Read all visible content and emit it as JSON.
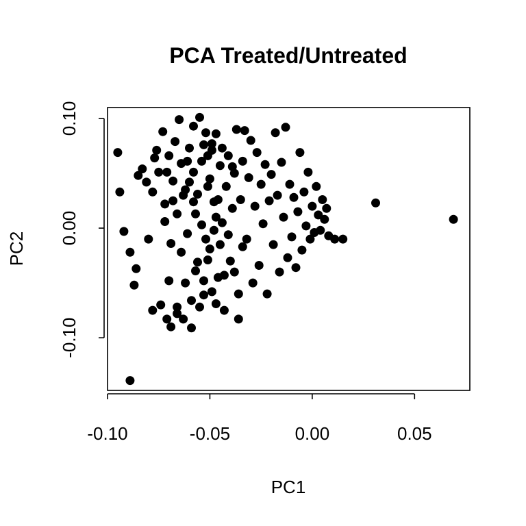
{
  "chart_data": {
    "type": "scatter",
    "title": "PCA Treated/Untreated",
    "xlabel": "PC1",
    "ylabel": "PC2",
    "xlim": [
      -0.1,
      0.077
    ],
    "ylim": [
      -0.148,
      0.11
    ],
    "x_ticks": [
      -0.1,
      -0.05,
      0.0,
      0.05
    ],
    "x_tick_labels": [
      "-0.10",
      "-0.05",
      "0.00",
      "0.05"
    ],
    "y_ticks": [
      -0.1,
      0.0,
      0.1
    ],
    "y_tick_labels": [
      "-0.10",
      "0.00",
      "0.10"
    ],
    "grid": false,
    "legend": "none",
    "point_color": "#000000",
    "points": [
      [
        -0.095,
        0.069
      ],
      [
        -0.094,
        0.033
      ],
      [
        -0.092,
        -0.003
      ],
      [
        -0.089,
        -0.022
      ],
      [
        -0.089,
        -0.139
      ],
      [
        -0.087,
        -0.052
      ],
      [
        -0.086,
        -0.037
      ],
      [
        -0.085,
        0.048
      ],
      [
        -0.083,
        0.054
      ],
      [
        -0.081,
        0.042
      ],
      [
        -0.08,
        -0.01
      ],
      [
        -0.078,
        0.033
      ],
      [
        -0.078,
        -0.075
      ],
      [
        -0.077,
        0.064
      ],
      [
        -0.076,
        0.071
      ],
      [
        -0.074,
        -0.07
      ],
      [
        -0.073,
        0.088
      ],
      [
        -0.072,
        0.022
      ],
      [
        -0.071,
        -0.083
      ],
      [
        -0.07,
        0.066
      ],
      [
        -0.069,
        -0.09
      ],
      [
        -0.068,
        0.043
      ],
      [
        -0.067,
        0.079
      ],
      [
        -0.066,
        -0.072
      ],
      [
        -0.065,
        0.099
      ],
      [
        -0.064,
        0.059
      ],
      [
        -0.063,
        -0.083
      ],
      [
        -0.062,
        0.035
      ],
      [
        -0.061,
        -0.005
      ],
      [
        -0.06,
        0.073
      ],
      [
        -0.059,
        -0.091
      ],
      [
        -0.058,
        0.093
      ],
      [
        -0.057,
        0.013
      ],
      [
        -0.056,
        -0.031
      ],
      [
        -0.055,
        0.101
      ],
      [
        -0.054,
        0.061
      ],
      [
        -0.053,
        -0.061
      ],
      [
        -0.052,
        0.087
      ],
      [
        -0.051,
        0.038
      ],
      [
        -0.05,
        -0.019
      ],
      [
        -0.049,
        0.071
      ],
      [
        -0.048,
        0.024
      ],
      [
        -0.047,
        0.086
      ],
      [
        -0.046,
        -0.045
      ],
      [
        -0.045,
        0.057
      ],
      [
        -0.044,
        0.005
      ],
      [
        -0.043,
        -0.075
      ],
      [
        -0.042,
        0.038
      ],
      [
        -0.041,
        0.066
      ],
      [
        -0.04,
        -0.03
      ],
      [
        -0.039,
        0.018
      ],
      [
        -0.038,
        0.05
      ],
      [
        -0.037,
        0.09
      ],
      [
        -0.036,
        -0.083
      ],
      [
        -0.035,
        0.026
      ],
      [
        -0.034,
        0.061
      ],
      [
        -0.033,
        0.089
      ],
      [
        -0.032,
        -0.01
      ],
      [
        -0.031,
        0.046
      ],
      [
        -0.03,
        0.08
      ],
      [
        -0.029,
        -0.05
      ],
      [
        -0.028,
        0.02
      ],
      [
        -0.027,
        0.069
      ],
      [
        -0.026,
        -0.034
      ],
      [
        -0.025,
        0.04
      ],
      [
        -0.024,
        0.004
      ],
      [
        -0.023,
        0.058
      ],
      [
        -0.022,
        -0.06
      ],
      [
        -0.021,
        0.025
      ],
      [
        -0.02,
        0.049
      ],
      [
        -0.019,
        -0.015
      ],
      [
        -0.018,
        0.087
      ],
      [
        -0.017,
        0.03
      ],
      [
        -0.016,
        -0.04
      ],
      [
        -0.015,
        0.06
      ],
      [
        -0.014,
        0.01
      ],
      [
        -0.013,
        0.092
      ],
      [
        -0.012,
        -0.027
      ],
      [
        -0.011,
        0.04
      ],
      [
        -0.01,
        -0.008
      ],
      [
        -0.009,
        0.028
      ],
      [
        -0.008,
        -0.036
      ],
      [
        -0.007,
        0.015
      ],
      [
        -0.006,
        0.069
      ],
      [
        -0.005,
        -0.02
      ],
      [
        -0.004,
        0.033
      ],
      [
        -0.003,
        0.002
      ],
      [
        -0.002,
        0.051
      ],
      [
        -0.001,
        -0.01
      ],
      [
        0.0,
        0.02
      ],
      [
        0.001,
        -0.004
      ],
      [
        0.002,
        0.038
      ],
      [
        0.003,
        0.012
      ],
      [
        0.004,
        -0.002
      ],
      [
        0.005,
        0.026
      ],
      [
        0.006,
        0.008
      ],
      [
        0.007,
        0.018
      ],
      [
        0.008,
        -0.007
      ],
      [
        0.011,
        -0.01
      ],
      [
        0.015,
        -0.01
      ],
      [
        0.031,
        0.023
      ],
      [
        0.069,
        0.008
      ],
      [
        -0.075,
        0.051
      ],
      [
        -0.071,
        0.051
      ],
      [
        -0.068,
        0.025
      ],
      [
        -0.066,
        0.013
      ],
      [
        -0.063,
        0.03
      ],
      [
        -0.06,
        0.042
      ],
      [
        -0.058,
        0.024
      ],
      [
        -0.056,
        0.031
      ],
      [
        -0.054,
        0.003
      ],
      [
        -0.052,
        -0.01
      ],
      [
        -0.05,
        0.045
      ],
      [
        -0.048,
        -0.002
      ],
      [
        -0.046,
        0.026
      ],
      [
        -0.045,
        -0.015
      ],
      [
        -0.043,
        -0.043
      ],
      [
        -0.041,
        -0.006
      ],
      [
        -0.039,
        0.056
      ],
      [
        -0.038,
        -0.04
      ],
      [
        -0.036,
        -0.06
      ],
      [
        -0.034,
        -0.017
      ],
      [
        -0.07,
        -0.048
      ],
      [
        -0.066,
        -0.078
      ],
      [
        -0.062,
        -0.05
      ],
      [
        -0.059,
        -0.066
      ],
      [
        -0.057,
        -0.039
      ],
      [
        -0.055,
        -0.072
      ],
      [
        -0.053,
        -0.048
      ],
      [
        -0.051,
        -0.029
      ],
      [
        -0.049,
        -0.058
      ],
      [
        -0.047,
        -0.069
      ],
      [
        -0.072,
        0.006
      ],
      [
        -0.069,
        -0.014
      ],
      [
        -0.064,
        -0.022
      ],
      [
        -0.061,
        0.061
      ],
      [
        -0.058,
        0.051
      ],
      [
        -0.053,
        0.076
      ],
      [
        -0.051,
        0.066
      ],
      [
        -0.049,
        0.077
      ],
      [
        -0.047,
        0.01
      ],
      [
        -0.044,
        0.073
      ]
    ]
  }
}
